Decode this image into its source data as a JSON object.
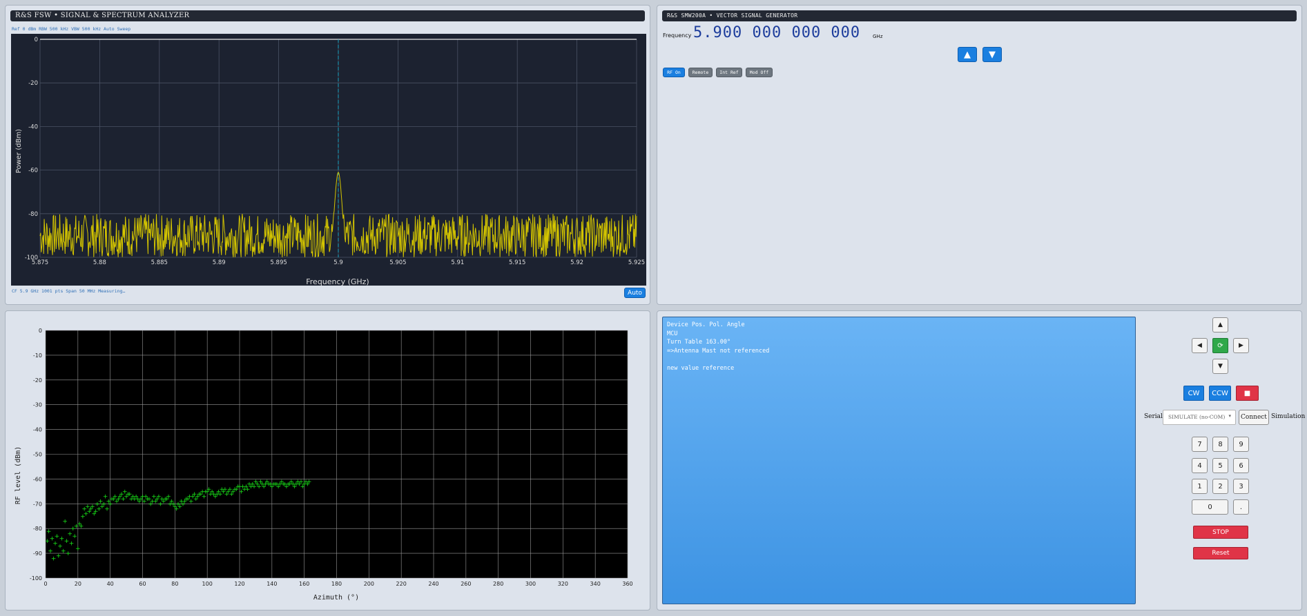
{
  "spectrum": {
    "title": "R&S FSW • SIGNAL & SPECTRUM ANALYZER",
    "settings_line": "Ref 0 dBm  RBW 500 kHz  VBW 500 kHz  Auto Sweep",
    "status_line": "CF 5.9 GHz  1001 pts  Span 50 MHz  Measuring…",
    "auto_button": "Auto",
    "colors": {
      "bg": "#1c2230",
      "trace": "#d4c500",
      "marker": "#1aa3c0"
    }
  },
  "generator": {
    "title": "R&S  SMW200A • VECTOR SIGNAL GENERATOR",
    "frequency_label": "Frequency",
    "frequency_value": "5.900 000 000 000",
    "frequency_unit": "GHz",
    "up_icon": "▲",
    "down_icon": "▼",
    "chips": [
      "RF On",
      "Remote",
      "Int Ref",
      "Mod Off"
    ]
  },
  "pattern": {
    "colors": {
      "bg": "#000000",
      "points": "#19e619"
    }
  },
  "console": {
    "lines": [
      "Device Pos. Pol. Angle",
      "MCU",
      "Turn Table 163.00°",
      "=>Antenna Mast not referenced",
      "",
      "new value reference"
    ]
  },
  "controls": {
    "nav": {
      "up": "▲",
      "down": "▼",
      "left": "◀",
      "right": "▶",
      "center": "⟳"
    },
    "cw": "CW",
    "ccw": "CCW",
    "stop_icon": "■",
    "serial_label": "Serial:",
    "serial_value": "SIMULATE (no-COM)",
    "connect": "Connect",
    "simulation": "Simulation",
    "keys": [
      "7",
      "8",
      "9",
      "4",
      "5",
      "6",
      "1",
      "2",
      "3",
      "0",
      "."
    ],
    "stop_label": "STOP",
    "reset_label": "Reset"
  },
  "chart_data": [
    {
      "type": "line",
      "xlabel": "Frequency (GHz)",
      "ylabel": "Power (dBm)",
      "xlim": [
        5.875,
        5.925
      ],
      "ylim": [
        -100,
        0
      ],
      "x_ticks": [
        "5.875",
        "5.88",
        "5.885",
        "5.89",
        "5.895",
        "5.9",
        "5.905",
        "5.91",
        "5.915",
        "5.92",
        "5.925"
      ],
      "y_ticks": [
        "0",
        "-20",
        "-40",
        "-60",
        "-80",
        "-100"
      ],
      "marker_x": 5.9,
      "series": [
        {
          "noise_floor_range": [
            -100,
            -80
          ],
          "peak_x": 5.9,
          "peak_y": -61
        }
      ],
      "grid": true
    },
    {
      "type": "scatter",
      "xlabel": "Azimuth (°)",
      "ylabel": "RF level (dBm)",
      "xlim": [
        0,
        360
      ],
      "ylim": [
        -100,
        0
      ],
      "x_ticks": [
        "0",
        "20",
        "40",
        "60",
        "80",
        "100",
        "120",
        "140",
        "160",
        "180",
        "200",
        "220",
        "240",
        "260",
        "280",
        "300",
        "320",
        "340",
        "360"
      ],
      "y_ticks": [
        "0",
        "-10",
        "-20",
        "-30",
        "-40",
        "-50",
        "-60",
        "-70",
        "-80",
        "-90",
        "-100"
      ],
      "grid": true,
      "points": [
        [
          1,
          -85
        ],
        [
          2,
          -81
        ],
        [
          3,
          -89
        ],
        [
          4,
          -84
        ],
        [
          5,
          -92
        ],
        [
          6,
          -86
        ],
        [
          7,
          -83
        ],
        [
          8,
          -91
        ],
        [
          9,
          -87
        ],
        [
          10,
          -84
        ],
        [
          11,
          -89
        ],
        [
          12,
          -77
        ],
        [
          13,
          -85
        ],
        [
          14,
          -90
        ],
        [
          15,
          -82
        ],
        [
          16,
          -86
        ],
        [
          17,
          -80
        ],
        [
          18,
          -83
        ],
        [
          19,
          -79
        ],
        [
          20,
          -88
        ],
        [
          21,
          -78
        ],
        [
          22,
          -79
        ],
        [
          23,
          -75
        ],
        [
          24,
          -72
        ],
        [
          25,
          -74
        ],
        [
          26,
          -71
        ],
        [
          27,
          -73
        ],
        [
          28,
          -72
        ],
        [
          29,
          -71
        ],
        [
          30,
          -74
        ],
        [
          31,
          -73
        ],
        [
          32,
          -70
        ],
        [
          33,
          -72
        ],
        [
          34,
          -69
        ],
        [
          35,
          -71
        ],
        [
          36,
          -70
        ],
        [
          37,
          -67
        ],
        [
          38,
          -72
        ],
        [
          39,
          -69
        ],
        [
          40,
          -70
        ],
        [
          41,
          -68
        ],
        [
          42,
          -68
        ],
        [
          43,
          -67
        ],
        [
          44,
          -69
        ],
        [
          45,
          -68
        ],
        [
          46,
          -67
        ],
        [
          47,
          -66
        ],
        [
          48,
          -68
        ],
        [
          49,
          -65
        ],
        [
          50,
          -67
        ],
        [
          51,
          -66
        ],
        [
          52,
          -66
        ],
        [
          53,
          -68
        ],
        [
          54,
          -67
        ],
        [
          55,
          -68
        ],
        [
          56,
          -67
        ],
        [
          57,
          -68
        ],
        [
          58,
          -69
        ],
        [
          59,
          -68
        ],
        [
          60,
          -67
        ],
        [
          61,
          -69
        ],
        [
          62,
          -67
        ],
        [
          63,
          -68
        ],
        [
          64,
          -68
        ],
        [
          65,
          -70
        ],
        [
          66,
          -69
        ],
        [
          67,
          -67
        ],
        [
          68,
          -69
        ],
        [
          69,
          -68
        ],
        [
          70,
          -67
        ],
        [
          71,
          -70
        ],
        [
          72,
          -68
        ],
        [
          73,
          -69
        ],
        [
          74,
          -68
        ],
        [
          75,
          -68
        ],
        [
          76,
          -67
        ],
        [
          77,
          -70
        ],
        [
          78,
          -69
        ],
        [
          79,
          -70
        ],
        [
          80,
          -71
        ],
        [
          81,
          -72
        ],
        [
          82,
          -70
        ],
        [
          83,
          -71
        ],
        [
          84,
          -69
        ],
        [
          85,
          -70
        ],
        [
          86,
          -69
        ],
        [
          87,
          -68
        ],
        [
          88,
          -68
        ],
        [
          89,
          -67
        ],
        [
          90,
          -69
        ],
        [
          91,
          -67
        ],
        [
          92,
          -66
        ],
        [
          93,
          -68
        ],
        [
          94,
          -67
        ],
        [
          95,
          -66
        ],
        [
          96,
          -66
        ],
        [
          97,
          -65
        ],
        [
          98,
          -67
        ],
        [
          99,
          -65
        ],
        [
          100,
          -65
        ],
        [
          101,
          -64
        ],
        [
          102,
          -66
        ],
        [
          103,
          -65
        ],
        [
          104,
          -66
        ],
        [
          105,
          -67
        ],
        [
          106,
          -66
        ],
        [
          107,
          -65
        ],
        [
          108,
          -66
        ],
        [
          109,
          -64
        ],
        [
          110,
          -65
        ],
        [
          111,
          -64
        ],
        [
          112,
          -66
        ],
        [
          113,
          -65
        ],
        [
          114,
          -64
        ],
        [
          115,
          -66
        ],
        [
          116,
          -65
        ],
        [
          117,
          -64
        ],
        [
          118,
          -64
        ],
        [
          119,
          -63
        ],
        [
          120,
          -63
        ],
        [
          121,
          -65
        ],
        [
          122,
          -63
        ],
        [
          123,
          -64
        ],
        [
          124,
          -63
        ],
        [
          125,
          -64
        ],
        [
          126,
          -62
        ],
        [
          127,
          -63
        ],
        [
          128,
          -62
        ],
        [
          129,
          -63
        ],
        [
          130,
          -61
        ],
        [
          131,
          -62
        ],
        [
          132,
          -63
        ],
        [
          133,
          -61
        ],
        [
          134,
          -62
        ],
        [
          135,
          -63
        ],
        [
          136,
          -62
        ],
        [
          137,
          -61
        ],
        [
          138,
          -62
        ],
        [
          139,
          -62
        ],
        [
          140,
          -63
        ],
        [
          141,
          -62
        ],
        [
          142,
          -62
        ],
        [
          143,
          -62
        ],
        [
          144,
          -63
        ],
        [
          145,
          -62
        ],
        [
          146,
          -61
        ],
        [
          147,
          -62
        ],
        [
          148,
          -62
        ],
        [
          149,
          -63
        ],
        [
          150,
          -62
        ],
        [
          151,
          -62
        ],
        [
          152,
          -61
        ],
        [
          153,
          -62
        ],
        [
          154,
          -63
        ],
        [
          155,
          -62
        ],
        [
          156,
          -61
        ],
        [
          157,
          -62
        ],
        [
          158,
          -61
        ],
        [
          159,
          -63
        ],
        [
          160,
          -62
        ],
        [
          161,
          -61
        ],
        [
          162,
          -62
        ],
        [
          163,
          -61
        ]
      ]
    }
  ]
}
